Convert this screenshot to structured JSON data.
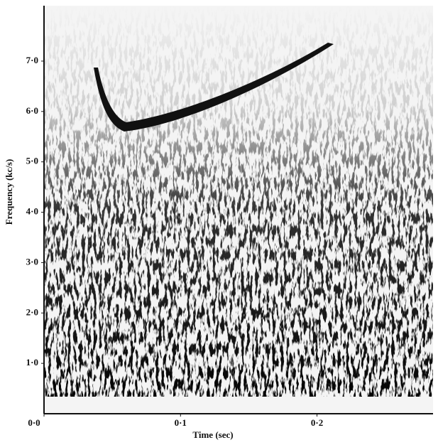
{
  "chart_data": {
    "type": "spectrogram",
    "xlabel": "Time (sec)",
    "ylabel": "Frequency (kc/s)",
    "xlim": [
      0,
      0.285
    ],
    "ylim": [
      0,
      8.1
    ],
    "xticks": [
      {
        "value": 0,
        "label": "0·0"
      },
      {
        "value": 0.1,
        "label": "0·1"
      },
      {
        "value": 0.2,
        "label": "0·2"
      }
    ],
    "yticks": [
      {
        "value": 1,
        "label": "1·0"
      },
      {
        "value": 2,
        "label": "2·0"
      },
      {
        "value": 3,
        "label": "3·0"
      },
      {
        "value": 4,
        "label": "4·0"
      },
      {
        "value": 5,
        "label": "5·0"
      },
      {
        "value": 6,
        "label": "6·0"
      },
      {
        "value": 7,
        "label": "7·0"
      }
    ]
  }
}
